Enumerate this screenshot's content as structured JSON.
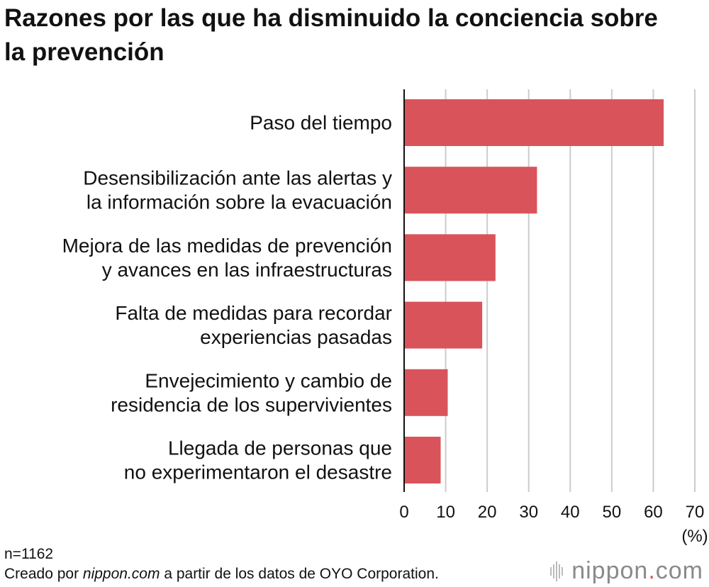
{
  "title": "Razones por las que ha disminuido la conciencia sobre la prevención",
  "colors": {
    "bar": "#d9545a",
    "grid": "#cccccc",
    "axis": "#111111",
    "logo_dot": "#d9545a",
    "logo": "#8a8a8a"
  },
  "chart_data": {
    "type": "bar",
    "orientation": "horizontal",
    "title": "Razones por las que ha disminuido la conciencia sobre la prevención",
    "categories": [
      [
        "Paso del tiempo"
      ],
      [
        "Desensibilización ante las alertas y",
        "la información sobre la evacuación"
      ],
      [
        "Mejora de las medidas de prevención",
        "y avances en las infraestructuras"
      ],
      [
        "Falta de medidas para recordar",
        "experiencias pasadas"
      ],
      [
        "Envejecimiento y cambio de",
        "residencia de los supervivientes"
      ],
      [
        "Llegada de personas que",
        "no experimentaron el desastre"
      ]
    ],
    "values": [
      62.5,
      32.0,
      22.0,
      18.8,
      10.5,
      8.8
    ],
    "xlim": [
      0,
      70
    ],
    "xticks": [
      0,
      10,
      20,
      30,
      40,
      50,
      60,
      70
    ],
    "xunit": "(%)",
    "grid": "vertical"
  },
  "footer": {
    "sample": "n=1162",
    "source_prefix": "Creado por ",
    "source_site": "nippon.com",
    "source_suffix": " a partir de los datos de OYO Corporation."
  },
  "logo": {
    "name": "nippon",
    "dot": ".",
    "tld": "com"
  }
}
